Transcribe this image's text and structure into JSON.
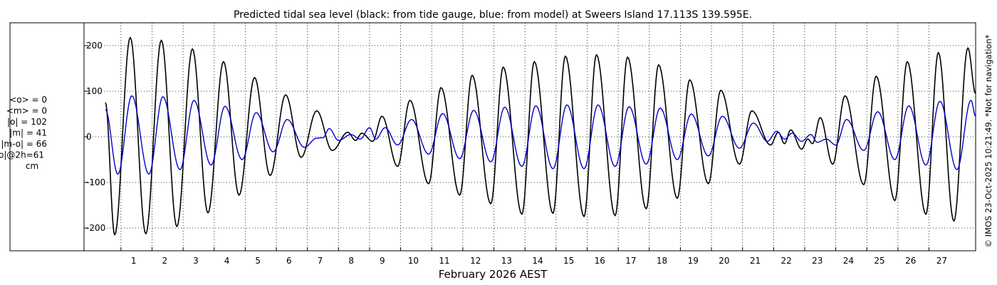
{
  "chart_data": {
    "type": "line",
    "title": "Predicted tidal sea level (black: from tide gauge, blue: from model) at Sweers Island 17.113S 139.595E.",
    "xlabel": "February 2026 AEST",
    "ylabel": "",
    "xlim": [
      0,
      28
    ],
    "ylim": [
      -240,
      240
    ],
    "yticks": [
      -200,
      -100,
      0,
      100,
      200
    ],
    "ytick_labels": [
      "-200",
      "-100",
      "0",
      "100",
      "200"
    ],
    "xtick_labels": [
      "1",
      "2",
      "3",
      "4",
      "5",
      "6",
      "7",
      "8",
      "9",
      "10",
      "11",
      "12",
      "13",
      "14",
      "15",
      "16",
      "17",
      "18",
      "19",
      "20",
      "21",
      "22",
      "23",
      "24",
      "25",
      "26",
      "27"
    ],
    "grid": true,
    "stats": [
      "<o> = 0",
      "<m> = 0",
      "|o| = 102",
      "|m| = 41",
      "|m-o| = 66",
      "|m-o|@2h=61",
      "cm"
    ],
    "side_note": "© IMOS 23-Oct-2025 10:21:49. *Not for navigation*",
    "series": [
      {
        "color": "#000000",
        "peaks": [
          [
            0.0,
            75
          ],
          [
            0.3,
            -215
          ],
          [
            0.8,
            218
          ],
          [
            1.3,
            -213
          ],
          [
            1.8,
            212
          ],
          [
            2.3,
            -197
          ],
          [
            2.8,
            193
          ],
          [
            3.3,
            -167
          ],
          [
            3.8,
            165
          ],
          [
            4.3,
            -128
          ],
          [
            4.8,
            130
          ],
          [
            5.3,
            -85
          ],
          [
            5.8,
            92
          ],
          [
            6.3,
            -45
          ],
          [
            6.8,
            57
          ],
          [
            7.3,
            -30
          ],
          [
            7.8,
            10
          ],
          [
            8.05,
            -8
          ],
          [
            8.25,
            8
          ],
          [
            8.6,
            -10
          ],
          [
            8.9,
            45
          ],
          [
            9.4,
            -65
          ],
          [
            9.8,
            80
          ],
          [
            10.4,
            -103
          ],
          [
            10.8,
            108
          ],
          [
            11.4,
            -128
          ],
          [
            11.8,
            135
          ],
          [
            12.4,
            -147
          ],
          [
            12.8,
            153
          ],
          [
            13.4,
            -170
          ],
          [
            13.8,
            165
          ],
          [
            14.4,
            -168
          ],
          [
            14.8,
            177
          ],
          [
            15.4,
            -175
          ],
          [
            15.8,
            180
          ],
          [
            16.4,
            -173
          ],
          [
            16.8,
            175
          ],
          [
            17.4,
            -158
          ],
          [
            17.8,
            158
          ],
          [
            18.4,
            -135
          ],
          [
            18.8,
            125
          ],
          [
            19.4,
            -103
          ],
          [
            19.8,
            102
          ],
          [
            20.4,
            -60
          ],
          [
            20.8,
            57
          ],
          [
            21.4,
            -18
          ],
          [
            21.65,
            10
          ],
          [
            21.85,
            -15
          ],
          [
            22.05,
            15
          ],
          [
            22.4,
            -27
          ],
          [
            22.6,
            -5
          ],
          [
            22.75,
            -15
          ],
          [
            23.0,
            42
          ],
          [
            23.4,
            -60
          ],
          [
            23.8,
            90
          ],
          [
            24.4,
            -105
          ],
          [
            24.8,
            133
          ],
          [
            25.4,
            -140
          ],
          [
            25.8,
            165
          ],
          [
            26.4,
            -170
          ],
          [
            26.8,
            185
          ],
          [
            27.3,
            -185
          ],
          [
            27.75,
            195
          ],
          [
            28.0,
            95
          ]
        ]
      },
      {
        "color": "#0000cc",
        "peaks": [
          [
            0.0,
            60
          ],
          [
            0.4,
            -82
          ],
          [
            0.85,
            90
          ],
          [
            1.4,
            -82
          ],
          [
            1.85,
            88
          ],
          [
            2.4,
            -72
          ],
          [
            2.85,
            80
          ],
          [
            3.4,
            -62
          ],
          [
            3.85,
            67
          ],
          [
            4.4,
            -50
          ],
          [
            4.85,
            53
          ],
          [
            5.4,
            -33
          ],
          [
            5.85,
            38
          ],
          [
            6.4,
            -23
          ],
          [
            6.8,
            -3
          ],
          [
            7.0,
            -2
          ],
          [
            7.2,
            18
          ],
          [
            7.5,
            -8
          ],
          [
            7.9,
            5
          ],
          [
            8.2,
            -5
          ],
          [
            8.5,
            20
          ],
          [
            8.7,
            -5
          ],
          [
            9.0,
            20
          ],
          [
            9.4,
            -18
          ],
          [
            9.85,
            38
          ],
          [
            10.4,
            -38
          ],
          [
            10.85,
            51
          ],
          [
            11.4,
            -48
          ],
          [
            11.85,
            58
          ],
          [
            12.4,
            -55
          ],
          [
            12.85,
            65
          ],
          [
            13.4,
            -65
          ],
          [
            13.85,
            68
          ],
          [
            14.4,
            -70
          ],
          [
            14.85,
            70
          ],
          [
            15.4,
            -70
          ],
          [
            15.85,
            70
          ],
          [
            16.4,
            -65
          ],
          [
            16.85,
            66
          ],
          [
            17.4,
            -60
          ],
          [
            17.85,
            63
          ],
          [
            18.4,
            -50
          ],
          [
            18.85,
            50
          ],
          [
            19.4,
            -42
          ],
          [
            19.85,
            45
          ],
          [
            20.4,
            -25
          ],
          [
            20.85,
            30
          ],
          [
            21.3,
            -10
          ],
          [
            21.6,
            12
          ],
          [
            21.85,
            -5
          ],
          [
            22.1,
            8
          ],
          [
            22.4,
            -10
          ],
          [
            22.7,
            5
          ],
          [
            22.9,
            -12
          ],
          [
            23.2,
            -5
          ],
          [
            23.5,
            -18
          ],
          [
            23.85,
            38
          ],
          [
            24.4,
            -30
          ],
          [
            24.85,
            55
          ],
          [
            25.4,
            -50
          ],
          [
            25.85,
            68
          ],
          [
            26.4,
            -62
          ],
          [
            26.85,
            78
          ],
          [
            27.4,
            -72
          ],
          [
            27.85,
            80
          ],
          [
            28.0,
            45
          ]
        ]
      }
    ]
  }
}
